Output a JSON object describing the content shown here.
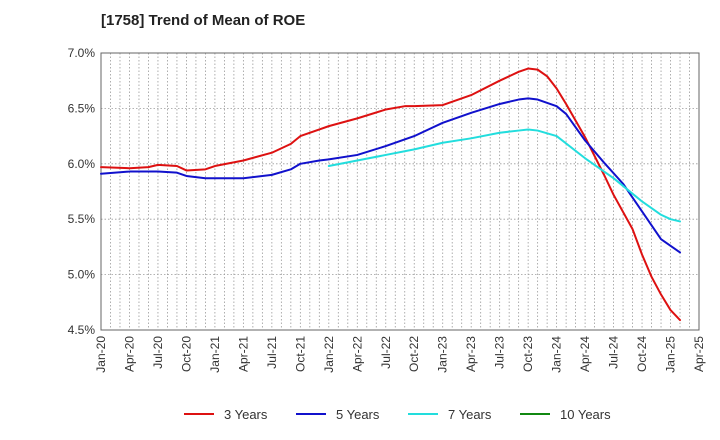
{
  "chart_data": {
    "type": "line",
    "title": "[1758]  Trend of Mean of ROE",
    "xlabel": "",
    "ylabel": "",
    "x_ticks": [
      "Jan-20",
      "Apr-20",
      "Jul-20",
      "Oct-20",
      "Jan-21",
      "Apr-21",
      "Jul-21",
      "Oct-21",
      "Jan-22",
      "Apr-22",
      "Jul-22",
      "Oct-22",
      "Jan-23",
      "Apr-23",
      "Jul-23",
      "Oct-23",
      "Jan-24",
      "Apr-24",
      "Jul-24",
      "Oct-24",
      "Jan-25",
      "Apr-25"
    ],
    "y_ticks": [
      "4.5%",
      "5.0%",
      "5.5%",
      "6.0%",
      "6.5%",
      "7.0%"
    ],
    "ylim": [
      4.5,
      7.0
    ],
    "grid": true,
    "legend_position": "bottom",
    "colors": {
      "3 Years": "#dd1111",
      "5 Years": "#1111cc",
      "7 Years": "#22dddd",
      "10 Years": "#118811"
    },
    "series": [
      {
        "name": "3 Years",
        "points": [
          [
            "Jan-20",
            5.97
          ],
          [
            "Apr-20",
            5.96
          ],
          [
            "Jun-20",
            5.97
          ],
          [
            "Jul-20",
            5.99
          ],
          [
            "Sep-20",
            5.98
          ],
          [
            "Oct-20",
            5.94
          ],
          [
            "Dec-20",
            5.95
          ],
          [
            "Jan-21",
            5.98
          ],
          [
            "Apr-21",
            6.03
          ],
          [
            "Jul-21",
            6.1
          ],
          [
            "Sep-21",
            6.18
          ],
          [
            "Oct-21",
            6.25
          ],
          [
            "Jan-22",
            6.34
          ],
          [
            "Apr-22",
            6.41
          ],
          [
            "Jul-22",
            6.49
          ],
          [
            "Sep-22",
            6.52
          ],
          [
            "Oct-22",
            6.52
          ],
          [
            "Jan-23",
            6.53
          ],
          [
            "Apr-23",
            6.62
          ],
          [
            "Jul-23",
            6.75
          ],
          [
            "Sep-23",
            6.83
          ],
          [
            "Oct-23",
            6.86
          ],
          [
            "Nov-23",
            6.85
          ],
          [
            "Dec-23",
            6.79
          ],
          [
            "Jan-24",
            6.68
          ],
          [
            "Feb-24",
            6.54
          ],
          [
            "Apr-24",
            6.24
          ],
          [
            "Jun-24",
            5.9
          ],
          [
            "Jul-24",
            5.72
          ],
          [
            "Sep-24",
            5.41
          ],
          [
            "Oct-24",
            5.18
          ],
          [
            "Nov-24",
            4.98
          ],
          [
            "Dec-24",
            4.82
          ],
          [
            "Jan-25",
            4.68
          ],
          [
            "Feb-25",
            4.59
          ]
        ]
      },
      {
        "name": "5 Years",
        "points": [
          [
            "Jan-20",
            5.91
          ],
          [
            "Apr-20",
            5.93
          ],
          [
            "Jul-20",
            5.93
          ],
          [
            "Sep-20",
            5.92
          ],
          [
            "Oct-20",
            5.89
          ],
          [
            "Dec-20",
            5.87
          ],
          [
            "Apr-21",
            5.87
          ],
          [
            "Jul-21",
            5.9
          ],
          [
            "Sep-21",
            5.95
          ],
          [
            "Oct-21",
            6.0
          ],
          [
            "Dec-21",
            6.03
          ],
          [
            "Jan-22",
            6.04
          ],
          [
            "Apr-22",
            6.08
          ],
          [
            "Jul-22",
            6.16
          ],
          [
            "Oct-22",
            6.25
          ],
          [
            "Jan-23",
            6.37
          ],
          [
            "Apr-23",
            6.46
          ],
          [
            "Jul-23",
            6.54
          ],
          [
            "Sep-23",
            6.58
          ],
          [
            "Oct-23",
            6.59
          ],
          [
            "Nov-23",
            6.58
          ],
          [
            "Jan-24",
            6.52
          ],
          [
            "Feb-24",
            6.45
          ],
          [
            "Apr-24",
            6.21
          ],
          [
            "Jun-24",
            6.01
          ],
          [
            "Aug-24",
            5.82
          ],
          [
            "Oct-24",
            5.57
          ],
          [
            "Dec-24",
            5.32
          ],
          [
            "Jan-25",
            5.26
          ],
          [
            "Feb-25",
            5.2
          ]
        ]
      },
      {
        "name": "7 Years",
        "points": [
          [
            "Jan-22",
            5.98
          ],
          [
            "Apr-22",
            6.03
          ],
          [
            "Jul-22",
            6.08
          ],
          [
            "Oct-22",
            6.13
          ],
          [
            "Jan-23",
            6.19
          ],
          [
            "Apr-23",
            6.23
          ],
          [
            "Jul-23",
            6.28
          ],
          [
            "Sep-23",
            6.3
          ],
          [
            "Oct-23",
            6.31
          ],
          [
            "Nov-23",
            6.3
          ],
          [
            "Jan-24",
            6.25
          ],
          [
            "Apr-24",
            6.05
          ],
          [
            "Jul-24",
            5.87
          ],
          [
            "Oct-24",
            5.66
          ],
          [
            "Dec-24",
            5.54
          ],
          [
            "Jan-25",
            5.5
          ],
          [
            "Feb-25",
            5.48
          ]
        ]
      },
      {
        "name": "10 Years",
        "points": []
      }
    ]
  }
}
